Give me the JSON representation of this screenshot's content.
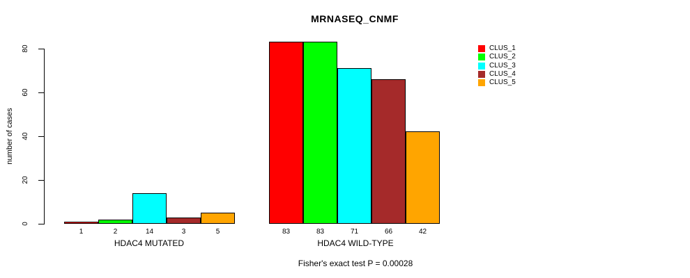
{
  "title": "MRNASEQ_CNMF",
  "footer": "Fisher's exact test P = 0.00028",
  "chart_data": {
    "type": "bar",
    "title": "MRNASEQ_CNMF",
    "xlabel": "",
    "ylabel": "number of cases",
    "ylim": [
      0,
      80
    ],
    "yticks": [
      0,
      20,
      40,
      60,
      80
    ],
    "grid": false,
    "legend_position": "right",
    "bar_value_labels_shown": true,
    "categories": [
      "HDAC4 MUTATED",
      "HDAC4 WILD-TYPE"
    ],
    "series": [
      {
        "name": "CLUS_1",
        "color": "#FF0000",
        "values": [
          1,
          83
        ]
      },
      {
        "name": "CLUS_2",
        "color": "#00FF00",
        "values": [
          2,
          83
        ]
      },
      {
        "name": "CLUS_3",
        "color": "#00FFFF",
        "values": [
          14,
          71
        ]
      },
      {
        "name": "CLUS_4",
        "color": "#A52A2A",
        "values": [
          3,
          66
        ]
      },
      {
        "name": "CLUS_5",
        "color": "#FFA500",
        "values": [
          5,
          42
        ]
      }
    ],
    "annotation": "Fisher's exact test P = 0.00028"
  }
}
